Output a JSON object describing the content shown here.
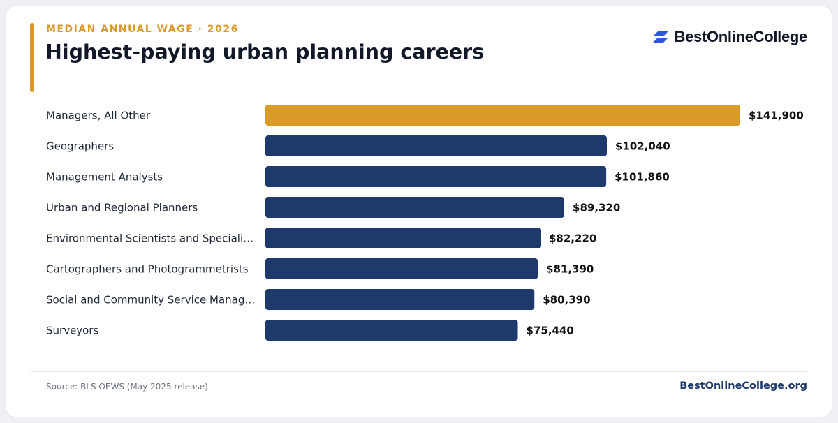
{
  "header": {
    "kicker": "MEDIAN ANNUAL WAGE · 2026",
    "title": "Highest-paying urban planning careers"
  },
  "brand": {
    "name": "BestOnlineCollege",
    "icon": "stacked-parallelogram-logo-icon",
    "icon_color": "#2b55e6"
  },
  "colors": {
    "highlight": "#d99a28",
    "bar": "#1e3a6c",
    "label": "#1f2937",
    "value": "#111111"
  },
  "chart_data": {
    "type": "bar",
    "orientation": "horizontal",
    "categories": [
      "Managers, All Other",
      "Geographers",
      "Management Analysts",
      "Urban and Regional Planners",
      "Environmental Scientists and Speciali…",
      "Cartographers and Photogrammetrists",
      "Social and Community Service Manag…",
      "Surveyors"
    ],
    "values": [
      141900,
      102040,
      101860,
      89320,
      82220,
      81390,
      80390,
      75440
    ],
    "value_labels": [
      "$141,900",
      "$102,040",
      "$101,860",
      "$89,320",
      "$82,220",
      "$81,390",
      "$80,390",
      "$75,440"
    ],
    "highlight_index": 0,
    "xlim": [
      0,
      141900
    ],
    "grid": false,
    "legend": "none"
  },
  "footer": {
    "source": "Source: BLS OEWS (May 2025 release)",
    "site": "BestOnlineCollege.org"
  }
}
